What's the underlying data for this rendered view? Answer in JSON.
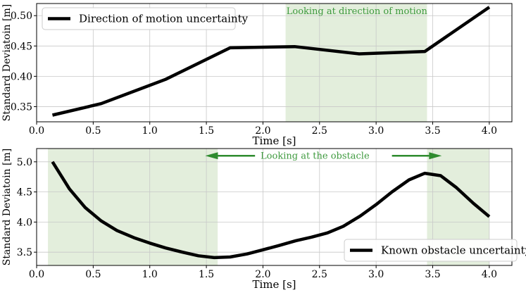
{
  "chart_data": [
    {
      "type": "line",
      "xlabel": "Time [s]",
      "ylabel": "Standard Deviatoin [m]",
      "xlim": [
        0.0,
        4.2
      ],
      "ylim": [
        0.325,
        0.52
      ],
      "xticks": [
        0.0,
        0.5,
        1.0,
        1.5,
        2.0,
        2.5,
        3.0,
        3.5,
        4.0
      ],
      "xtick_labels": [
        "0.0",
        "0.5",
        "1.0",
        "1.5",
        "2.0",
        "2.5",
        "3.0",
        "3.5",
        "4.0"
      ],
      "yticks": [
        0.35,
        0.4,
        0.45,
        0.5
      ],
      "ytick_labels": [
        "0.35",
        "0.40",
        "0.45",
        "0.50"
      ],
      "grid": true,
      "legend": {
        "entries": [
          "Direction of motion uncertainty"
        ],
        "position": "top-left"
      },
      "shaded_regions": [
        {
          "x0": 2.2,
          "x1": 3.45,
          "color": "#e3eedc"
        }
      ],
      "annotations": [
        {
          "text": "Looking at direction of motion",
          "x": 2.83,
          "y": 0.507,
          "color": "#3e9a3e"
        }
      ],
      "series": [
        {
          "name": "Direction of motion uncertainty",
          "color": "#000000",
          "x": [
            0.14,
            0.57,
            1.14,
            1.71,
            2.28,
            2.85,
            3.43,
            4.0
          ],
          "y": [
            0.336,
            0.355,
            0.395,
            0.447,
            0.449,
            0.437,
            0.441,
            0.514
          ]
        }
      ]
    },
    {
      "type": "line",
      "xlabel": "Time [s]",
      "ylabel": "Standard Deviatoin [m]",
      "xlim": [
        0.0,
        4.2
      ],
      "ylim": [
        3.28,
        5.22
      ],
      "xticks": [
        0.0,
        0.5,
        1.0,
        1.5,
        2.0,
        2.5,
        3.0,
        3.5,
        4.0
      ],
      "xtick_labels": [
        "0.0",
        "0.5",
        "1.0",
        "1.5",
        "2.0",
        "2.5",
        "3.0",
        "3.5",
        "4.0"
      ],
      "yticks": [
        3.5,
        4.0,
        4.5,
        5.0
      ],
      "ytick_labels": [
        "3.5",
        "4.0",
        "4.5",
        "5.0"
      ],
      "grid": true,
      "legend": {
        "entries": [
          "Known obstacle uncertainty"
        ],
        "position": "bottom-right"
      },
      "shaded_regions": [
        {
          "x0": 0.1,
          "x1": 1.6,
          "color": "#e3eedc"
        },
        {
          "x0": 3.45,
          "x1": 4.0,
          "color": "#e3eedc"
        }
      ],
      "annotations": [
        {
          "text": "Looking at the obstacle",
          "x": 2.46,
          "y": 5.1,
          "color": "#3e9a3e"
        }
      ],
      "arrows": [
        {
          "from": [
            1.93,
            5.1
          ],
          "to": [
            1.49,
            5.1
          ],
          "color": "#2e8b2e"
        },
        {
          "from": [
            3.14,
            5.1
          ],
          "to": [
            3.58,
            5.1
          ],
          "color": "#2e8b2e"
        }
      ],
      "series": [
        {
          "name": "Known obstacle uncertainty",
          "color": "#000000",
          "x": [
            0.14,
            0.29,
            0.43,
            0.57,
            0.71,
            0.86,
            1.0,
            1.14,
            1.29,
            1.43,
            1.57,
            1.71,
            1.86,
            2.0,
            2.14,
            2.29,
            2.43,
            2.57,
            2.71,
            2.86,
            3.0,
            3.14,
            3.29,
            3.43,
            3.57,
            3.71,
            3.86,
            4.0
          ],
          "y": [
            5.0,
            4.55,
            4.24,
            4.02,
            3.86,
            3.74,
            3.65,
            3.57,
            3.5,
            3.44,
            3.41,
            3.42,
            3.47,
            3.54,
            3.61,
            3.69,
            3.75,
            3.82,
            3.93,
            4.1,
            4.29,
            4.5,
            4.7,
            4.81,
            4.77,
            4.57,
            4.31,
            4.09
          ]
        }
      ]
    }
  ]
}
